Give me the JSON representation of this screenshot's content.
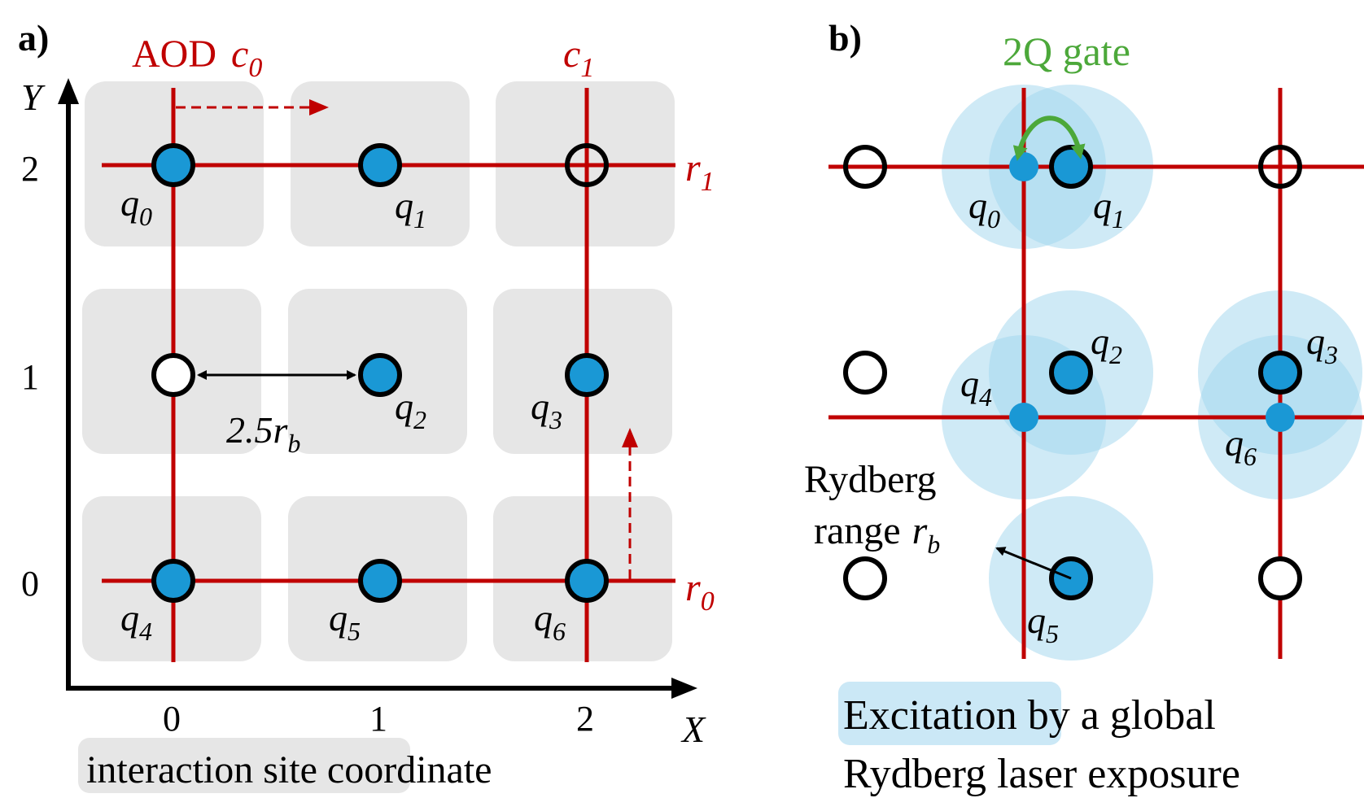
{
  "colors": {
    "aod_red": "#c00000",
    "qubit_blue": "#1a98d5",
    "site_gray": "#e6e6e6",
    "range_blue": "#9fd5ee",
    "gate_green": "#4ca83a",
    "axis_black": "#000000"
  },
  "panel_a": {
    "label": "a)",
    "aod_label": "AOD",
    "c0": {
      "base": "c",
      "sub": "0"
    },
    "c1": {
      "base": "c",
      "sub": "1"
    },
    "r0": {
      "base": "r",
      "sub": "0"
    },
    "r1": {
      "base": "r",
      "sub": "1"
    },
    "axis_x": "X",
    "axis_y": "Y",
    "x_ticks": [
      "0",
      "1",
      "2"
    ],
    "y_ticks": [
      "0",
      "1",
      "2"
    ],
    "distance_label": {
      "base": "2.5r",
      "sub": "b"
    },
    "caption_highlight": "interaction site",
    "caption_rest": " coordinate",
    "qubits": [
      {
        "name": "q0",
        "base": "q",
        "sub": "0"
      },
      {
        "name": "q1",
        "base": "q",
        "sub": "1"
      },
      {
        "name": "q2",
        "base": "q",
        "sub": "2"
      },
      {
        "name": "q3",
        "base": "q",
        "sub": "3"
      },
      {
        "name": "q4",
        "base": "q",
        "sub": "4"
      },
      {
        "name": "q5",
        "base": "q",
        "sub": "5"
      },
      {
        "name": "q6",
        "base": "q",
        "sub": "6"
      }
    ]
  },
  "panel_b": {
    "label": "b)",
    "gate_label": "2Q gate",
    "rydberg_line1": "Rydberg",
    "rydberg_line2": "range",
    "rydberg_var": {
      "base": "r",
      "sub": "b"
    },
    "caption_highlight": "Excitation",
    "caption_line1_rest": " by a global",
    "caption_line2": "Rydberg laser exposure",
    "qubits": [
      {
        "name": "q0",
        "base": "q",
        "sub": "0"
      },
      {
        "name": "q1",
        "base": "q",
        "sub": "1"
      },
      {
        "name": "q2",
        "base": "q",
        "sub": "2"
      },
      {
        "name": "q3",
        "base": "q",
        "sub": "3"
      },
      {
        "name": "q4",
        "base": "q",
        "sub": "4"
      },
      {
        "name": "q5",
        "base": "q",
        "sub": "5"
      },
      {
        "name": "q6",
        "base": "q",
        "sub": "6"
      }
    ]
  }
}
